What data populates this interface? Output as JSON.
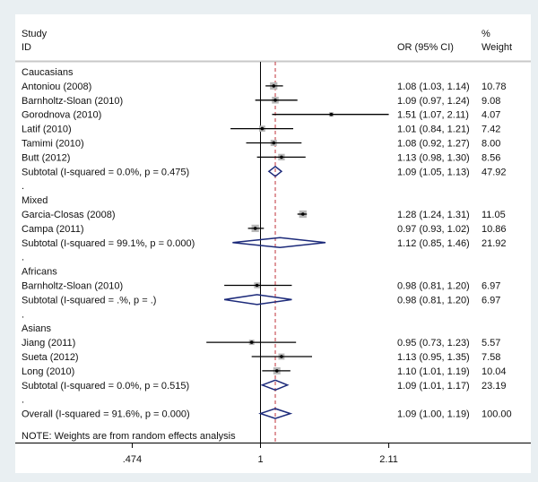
{
  "chart_data": {
    "type": "forest",
    "header": {
      "study": "Study",
      "id": "ID",
      "or_ci": "OR (95% CI)",
      "pct": "%",
      "weight": "Weight"
    },
    "xscale": "log",
    "xticks": [
      {
        "value": 0.474,
        "label": ".474"
      },
      {
        "value": 1,
        "label": "1"
      },
      {
        "value": 2.11,
        "label": "2.11"
      }
    ],
    "null_line": 1,
    "overall_line": 1.09,
    "rows": [
      {
        "type": "group",
        "label": "Caucasians"
      },
      {
        "type": "study",
        "label": "Antoniou (2008)",
        "or": 1.08,
        "lo": 1.03,
        "hi": 1.14,
        "ci_text": "1.08 (1.03, 1.14)",
        "weight": 10.78,
        "weight_text": "10.78"
      },
      {
        "type": "study",
        "label": "Barnholtz-Sloan (2010)",
        "or": 1.09,
        "lo": 0.97,
        "hi": 1.24,
        "ci_text": "1.09 (0.97, 1.24)",
        "weight": 9.08,
        "weight_text": "9.08"
      },
      {
        "type": "study",
        "label": "Gorodnova (2010)",
        "or": 1.51,
        "lo": 1.07,
        "hi": 2.11,
        "ci_text": "1.51 (1.07, 2.11)",
        "weight": 4.07,
        "weight_text": "4.07"
      },
      {
        "type": "study",
        "label": "Latif (2010)",
        "or": 1.01,
        "lo": 0.84,
        "hi": 1.21,
        "ci_text": "1.01 (0.84, 1.21)",
        "weight": 7.42,
        "weight_text": "7.42"
      },
      {
        "type": "study",
        "label": "Tamimi (2010)",
        "or": 1.08,
        "lo": 0.92,
        "hi": 1.27,
        "ci_text": "1.08 (0.92, 1.27)",
        "weight": 8.0,
        "weight_text": "8.00"
      },
      {
        "type": "study",
        "label": "Butt (2012)",
        "or": 1.13,
        "lo": 0.98,
        "hi": 1.3,
        "ci_text": "1.13 (0.98, 1.30)",
        "weight": 8.56,
        "weight_text": "8.56"
      },
      {
        "type": "subtotal",
        "label": "Subtotal  (I-squared = 0.0%, p = 0.475)",
        "or": 1.09,
        "lo": 1.05,
        "hi": 1.13,
        "ci_text": "1.09 (1.05, 1.13)",
        "weight": 47.92,
        "weight_text": "47.92"
      },
      {
        "type": "spacer",
        "label": "."
      },
      {
        "type": "group",
        "label": "Mixed"
      },
      {
        "type": "study",
        "label": "Garcia-Closas (2008)",
        "or": 1.28,
        "lo": 1.24,
        "hi": 1.31,
        "ci_text": "1.28 (1.24, 1.31)",
        "weight": 11.05,
        "weight_text": "11.05"
      },
      {
        "type": "study",
        "label": "Campa (2011)",
        "or": 0.97,
        "lo": 0.93,
        "hi": 1.02,
        "ci_text": "0.97 (0.93, 1.02)",
        "weight": 10.86,
        "weight_text": "10.86"
      },
      {
        "type": "subtotal",
        "label": "Subtotal  (I-squared = 99.1%, p = 0.000)",
        "or": 1.12,
        "lo": 0.85,
        "hi": 1.46,
        "ci_text": "1.12 (0.85, 1.46)",
        "weight": 21.92,
        "weight_text": "21.92"
      },
      {
        "type": "spacer",
        "label": "."
      },
      {
        "type": "group",
        "label": "Africans"
      },
      {
        "type": "study",
        "label": "Barnholtz-Sloan (2010)",
        "or": 0.98,
        "lo": 0.81,
        "hi": 1.2,
        "ci_text": "0.98 (0.81, 1.20)",
        "weight": 6.97,
        "weight_text": "6.97"
      },
      {
        "type": "subtotal",
        "label": "Subtotal  (I-squared = .%, p = .)",
        "or": 0.98,
        "lo": 0.81,
        "hi": 1.2,
        "ci_text": "0.98 (0.81, 1.20)",
        "weight": 6.97,
        "weight_text": "6.97"
      },
      {
        "type": "spacer",
        "label": "."
      },
      {
        "type": "group",
        "label": "Asians"
      },
      {
        "type": "study",
        "label": "Jiang (2011)",
        "or": 0.95,
        "lo": 0.73,
        "hi": 1.23,
        "ci_text": "0.95 (0.73, 1.23)",
        "weight": 5.57,
        "weight_text": "5.57"
      },
      {
        "type": "study",
        "label": "Sueta (2012)",
        "or": 1.13,
        "lo": 0.95,
        "hi": 1.35,
        "ci_text": "1.13 (0.95, 1.35)",
        "weight": 7.58,
        "weight_text": "7.58"
      },
      {
        "type": "study",
        "label": "Long (2010)",
        "or": 1.1,
        "lo": 1.01,
        "hi": 1.19,
        "ci_text": "1.10 (1.01, 1.19)",
        "weight": 10.04,
        "weight_text": "10.04"
      },
      {
        "type": "subtotal",
        "label": "Subtotal  (I-squared = 0.0%, p = 0.515)",
        "or": 1.09,
        "lo": 1.01,
        "hi": 1.17,
        "ci_text": "1.09 (1.01, 1.17)",
        "weight": 23.19,
        "weight_text": "23.19"
      },
      {
        "type": "spacer",
        "label": "."
      },
      {
        "type": "overall",
        "label": "Overall  (I-squared = 91.6%, p = 0.000)",
        "or": 1.09,
        "lo": 1.0,
        "hi": 1.19,
        "ci_text": "1.09 (1.00, 1.19)",
        "weight": 100.0,
        "weight_text": "100.00"
      }
    ],
    "note": "NOTE: Weights are from random effects analysis",
    "colors": {
      "diamond": "#1c2a7a",
      "square": "#b8b8b8",
      "overall_line": "#c0323a",
      "line": "#000000"
    }
  }
}
